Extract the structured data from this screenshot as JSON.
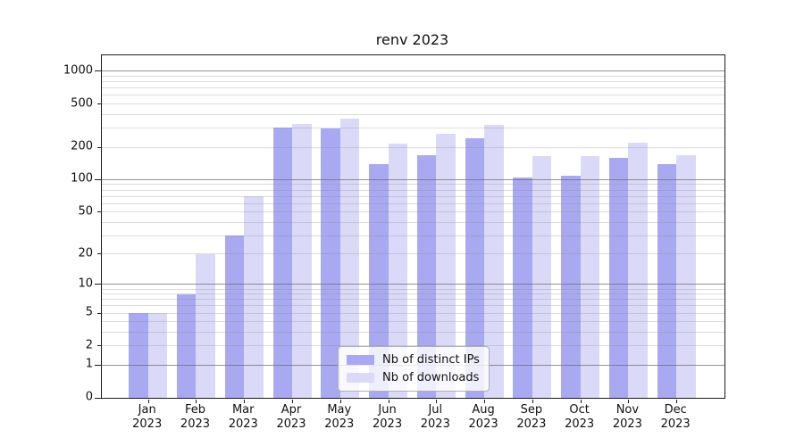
{
  "chart_data": {
    "type": "bar",
    "title": "renv 2023",
    "x_year": "2023",
    "categories": [
      "Jan",
      "Feb",
      "Mar",
      "Apr",
      "May",
      "Jun",
      "Jul",
      "Aug",
      "Sep",
      "Oct",
      "Nov",
      "Dec"
    ],
    "series": [
      {
        "name": "Nb of distinct IPs",
        "color": "#a9a9f2",
        "values": [
          5,
          8,
          30,
          305,
          298,
          140,
          168,
          240,
          105,
          110,
          158,
          140
        ]
      },
      {
        "name": "Nb of downloads",
        "color": "#dadaf8",
        "values": [
          5,
          20,
          70,
          330,
          365,
          215,
          265,
          320,
          165,
          165,
          220,
          170
        ]
      }
    ],
    "y_scale": "log1p",
    "y_tick_values": [
      0,
      1,
      2,
      5,
      10,
      20,
      50,
      100,
      200,
      500,
      1000
    ],
    "y_tick_labels": [
      "0",
      "1",
      "2",
      "5",
      "10",
      "20",
      "50",
      "100",
      "200",
      "500",
      "1000"
    ],
    "ylim": [
      0,
      1403
    ],
    "grid": "horizontal log minor+major lines drawn over bars",
    "legend_position": "lower center"
  },
  "colors": {
    "series_ips": "#a9a9f2",
    "series_downloads": "#dadaf8",
    "spine": "#1a1a1a",
    "legend_border": "#b0b0b0"
  }
}
